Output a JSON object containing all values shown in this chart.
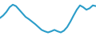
{
  "x": [
    0,
    1,
    2,
    3,
    4,
    5,
    6,
    7,
    8,
    9,
    10,
    11,
    12,
    13,
    14,
    15,
    16,
    17,
    18,
    19,
    20,
    21,
    22,
    23,
    24,
    25,
    26,
    27,
    28,
    29,
    30
  ],
  "y": [
    55,
    62,
    72,
    85,
    92,
    88,
    78,
    68,
    58,
    52,
    45,
    38,
    30,
    22,
    18,
    15,
    18,
    22,
    18,
    15,
    20,
    30,
    45,
    62,
    78,
    90,
    85,
    78,
    82,
    90,
    88
  ],
  "line_color": "#2b9dc9",
  "linewidth": 1.5,
  "background_color": "#ffffff",
  "ylim": [
    5,
    105
  ],
  "xlim": [
    0,
    30
  ]
}
